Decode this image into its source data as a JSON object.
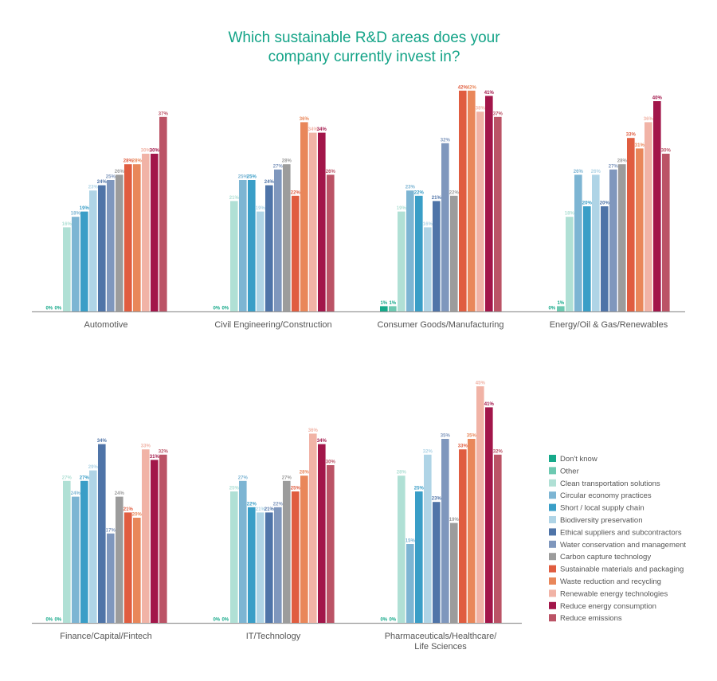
{
  "chart_data": {
    "type": "bar",
    "title": "Which sustainable R&D areas does your company currently invest in?",
    "title_lines": [
      "Which sustainable R&D areas does your",
      "company currently invest in?"
    ],
    "value_suffix": "%",
    "ylim": [
      0,
      45
    ],
    "grid": false,
    "legend_position": "bottom-right",
    "series_names": [
      "Don't know",
      "Other",
      "Clean transportation solutions",
      "Circular economy practices",
      "Short / local supply chain",
      "Biodiversity preservation",
      "Ethical suppliers and subcontractors",
      "Water conservation and management",
      "Carbon capture technology",
      "Sustainable materials and packaging",
      "Waste reduction and recycling",
      "Renewable energy technologies",
      "Reduce energy consumption",
      "Reduce emissions"
    ],
    "series_colors": [
      "#16a98a",
      "#6dc9b1",
      "#b0e0d5",
      "#7db5d3",
      "#3a9ec7",
      "#afd4e6",
      "#4f74a8",
      "#7f97bd",
      "#9c9c9c",
      "#e05d40",
      "#e9875a",
      "#f1b3a6",
      "#a2164a",
      "#bb5366"
    ],
    "categories": [
      {
        "name": "Automotive",
        "label_lines": [
          "Automotive"
        ],
        "values": [
          0,
          0,
          16,
          18,
          19,
          23,
          24,
          25,
          26,
          28,
          28,
          30,
          30,
          37
        ]
      },
      {
        "name": "Civil Engineering/Construction",
        "label_lines": [
          "Civil Engineering/Construction"
        ],
        "values": [
          0,
          0,
          21,
          25,
          25,
          19,
          24,
          27,
          28,
          22,
          36,
          34,
          34,
          26
        ]
      },
      {
        "name": "Consumer Goods/Manufacturing",
        "label_lines": [
          "Consumer Goods/Manufacturing"
        ],
        "values": [
          1,
          1,
          19,
          23,
          22,
          16,
          21,
          32,
          22,
          42,
          42,
          38,
          41,
          37
        ]
      },
      {
        "name": "Energy/Oil & Gas/Renewables",
        "label_lines": [
          "Energy/Oil & Gas/Renewables"
        ],
        "values": [
          0,
          1,
          18,
          26,
          20,
          26,
          20,
          27,
          28,
          33,
          31,
          36,
          40,
          30
        ]
      },
      {
        "name": "Finance/Capital/Fintech",
        "label_lines": [
          "Finance/Capital/Fintech"
        ],
        "values": [
          0,
          0,
          27,
          24,
          27,
          29,
          34,
          17,
          24,
          21,
          20,
          33,
          31,
          32
        ]
      },
      {
        "name": "IT/Technology",
        "label_lines": [
          "IT/Technology"
        ],
        "values": [
          0,
          0,
          25,
          27,
          22,
          21,
          21,
          22,
          27,
          25,
          28,
          36,
          34,
          30
        ]
      },
      {
        "name": "Pharmaceuticals/Healthcare/Life Sciences",
        "label_lines": [
          "Pharmaceuticals/Healthcare/",
          "Life Sciences"
        ],
        "values": [
          0,
          0,
          28,
          15,
          25,
          32,
          23,
          35,
          19,
          33,
          35,
          45,
          41,
          32
        ]
      }
    ]
  }
}
